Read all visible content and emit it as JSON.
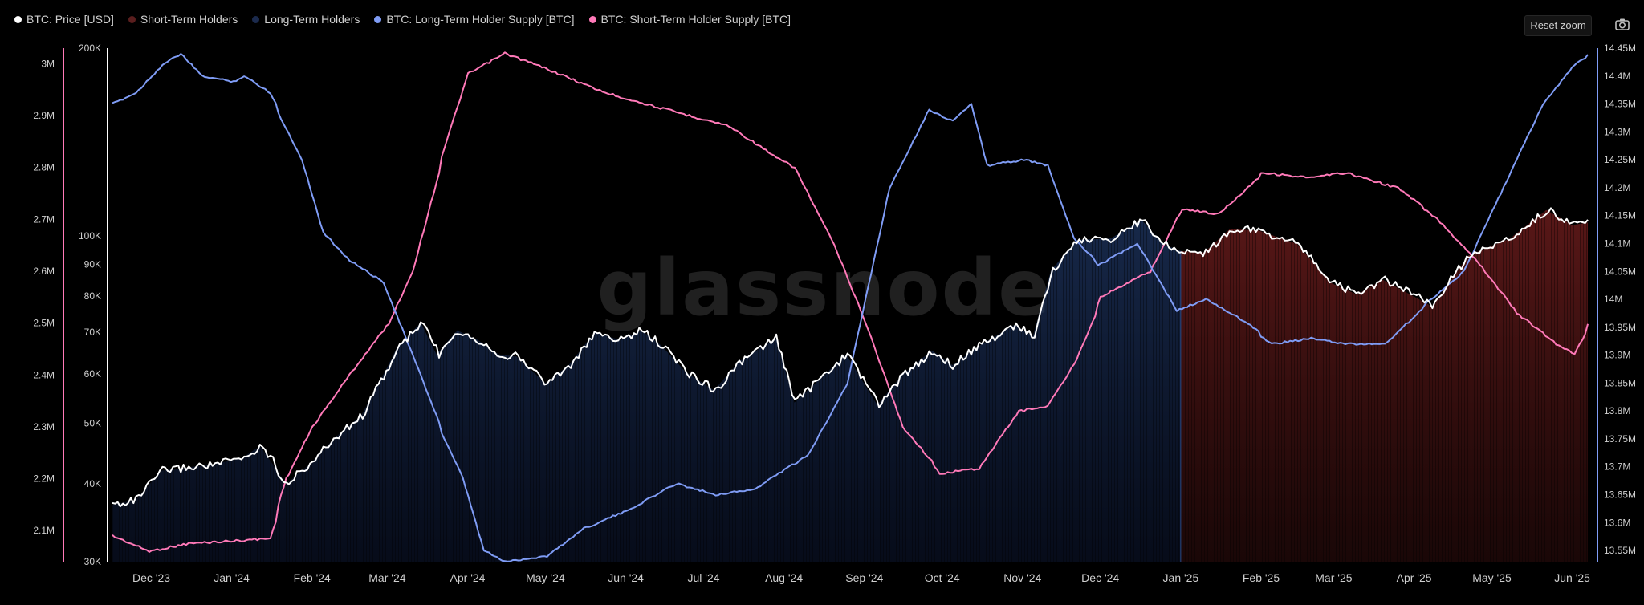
{
  "toolbar": {
    "reset_zoom_label": "Reset zoom",
    "camera_icon": "camera-icon"
  },
  "watermark": "glassnode",
  "colors": {
    "price": "#ffffff",
    "sth_area": "#a32b2b",
    "lth_area": "#2a4a86",
    "lth_supply": "#7f9cf5",
    "sth_supply": "#ff79b8"
  },
  "chart_data": {
    "type": "line",
    "title": "",
    "legend_placement": "top-left",
    "grid": false,
    "legend": [
      {
        "key": "price",
        "label": "BTC: Price [USD]"
      },
      {
        "key": "sth",
        "label": "Short-Term Holders"
      },
      {
        "key": "lth",
        "label": "Long-Term Holders"
      },
      {
        "key": "lth_supply",
        "label": "BTC: Long-Term Holder Supply [BTC]"
      },
      {
        "key": "sth_supply",
        "label": "BTC: Short-Term Holder Supply [BTC]"
      }
    ],
    "x_start": "2023-11-16",
    "x_end": "2025-06-07",
    "x_ticks": [
      {
        "date": "2023-12-01",
        "label": "Dec '23"
      },
      {
        "date": "2024-01-01",
        "label": "Jan '24"
      },
      {
        "date": "2024-02-01",
        "label": "Feb '24"
      },
      {
        "date": "2024-03-01",
        "label": "Mar '24"
      },
      {
        "date": "2024-04-01",
        "label": "Apr '24"
      },
      {
        "date": "2024-05-01",
        "label": "May '24"
      },
      {
        "date": "2024-06-01",
        "label": "Jun '24"
      },
      {
        "date": "2024-07-01",
        "label": "Jul '24"
      },
      {
        "date": "2024-08-01",
        "label": "Aug '24"
      },
      {
        "date": "2024-09-01",
        "label": "Sep '24"
      },
      {
        "date": "2024-10-01",
        "label": "Oct '24"
      },
      {
        "date": "2024-11-01",
        "label": "Nov '24"
      },
      {
        "date": "2024-12-01",
        "label": "Dec '24"
      },
      {
        "date": "2025-01-01",
        "label": "Jan '25"
      },
      {
        "date": "2025-02-01",
        "label": "Feb '25"
      },
      {
        "date": "2025-03-01",
        "label": "Mar '25"
      },
      {
        "date": "2025-04-01",
        "label": "Apr '25"
      },
      {
        "date": "2025-05-01",
        "label": "May '25"
      },
      {
        "date": "2025-06-01",
        "label": "Jun '25"
      }
    ],
    "axes": {
      "sth_supply": {
        "side": "far-left",
        "min": 2040000,
        "max": 3030000,
        "ticks": [
          "3M",
          "2.9M",
          "2.8M",
          "2.7M",
          "2.6M",
          "2.5M",
          "2.4M",
          "2.3M",
          "2.2M",
          "2.1M"
        ],
        "tick_values": [
          3000000,
          2900000,
          2800000,
          2700000,
          2600000,
          2500000,
          2400000,
          2300000,
          2200000,
          2100000
        ]
      },
      "price": {
        "side": "left",
        "scale": "log",
        "min": 30000,
        "max": 200000,
        "ticks": [
          "200K",
          "100K",
          "90K",
          "80K",
          "70K",
          "60K",
          "50K",
          "40K",
          "30K"
        ],
        "tick_values": [
          200000,
          100000,
          90000,
          80000,
          70000,
          60000,
          50000,
          40000,
          30000
        ]
      },
      "lth_supply": {
        "side": "right",
        "min": 13530000,
        "max": 14450000,
        "ticks": [
          "14.45M",
          "14.4M",
          "14.35M",
          "14.3M",
          "14.25M",
          "14.2M",
          "14.15M",
          "14.1M",
          "14.05M",
          "14M",
          "13.95M",
          "13.9M",
          "13.85M",
          "13.8M",
          "13.75M",
          "13.7M",
          "13.65M",
          "13.6M",
          "13.55M"
        ],
        "tick_values": [
          14450000,
          14400000,
          14350000,
          14300000,
          14250000,
          14200000,
          14150000,
          14100000,
          14050000,
          14000000,
          13950000,
          13900000,
          13850000,
          13800000,
          13750000,
          13700000,
          13650000,
          13600000,
          13550000
        ]
      }
    },
    "holder_regime": [
      {
        "name": "Long-Term Holders",
        "from": "2023-11-16",
        "to": "2025-01-01"
      },
      {
        "name": "Short-Term Holders",
        "from": "2025-01-01",
        "to": "2025-06-07"
      }
    ],
    "series": [
      {
        "key": "price",
        "name": "BTC: Price [USD]",
        "points": [
          [
            "2023-11-16",
            37000
          ],
          [
            "2023-11-25",
            37700
          ],
          [
            "2023-12-05",
            42000
          ],
          [
            "2023-12-15",
            42500
          ],
          [
            "2023-12-25",
            43000
          ],
          [
            "2024-01-05",
            44000
          ],
          [
            "2024-01-12",
            46000
          ],
          [
            "2024-01-22",
            40000
          ],
          [
            "2024-01-31",
            43000
          ],
          [
            "2024-02-10",
            47500
          ],
          [
            "2024-02-20",
            51500
          ],
          [
            "2024-03-01",
            61500
          ],
          [
            "2024-03-05",
            66500
          ],
          [
            "2024-03-14",
            72500
          ],
          [
            "2024-03-20",
            64500
          ],
          [
            "2024-03-28",
            70500
          ],
          [
            "2024-04-05",
            68000
          ],
          [
            "2024-04-13",
            64500
          ],
          [
            "2024-04-20",
            64000
          ],
          [
            "2024-05-01",
            58000
          ],
          [
            "2024-05-10",
            62000
          ],
          [
            "2024-05-20",
            70000
          ],
          [
            "2024-05-30",
            68000
          ],
          [
            "2024-06-07",
            70500
          ],
          [
            "2024-06-15",
            66500
          ],
          [
            "2024-06-24",
            60500
          ],
          [
            "2024-07-05",
            56500
          ],
          [
            "2024-07-15",
            63000
          ],
          [
            "2024-07-29",
            68500
          ],
          [
            "2024-08-05",
            54000
          ],
          [
            "2024-08-15",
            59000
          ],
          [
            "2024-08-25",
            64500
          ],
          [
            "2024-09-06",
            53500
          ],
          [
            "2024-09-15",
            59500
          ],
          [
            "2024-09-27",
            65500
          ],
          [
            "2024-10-05",
            62000
          ],
          [
            "2024-10-15",
            66500
          ],
          [
            "2024-10-29",
            72000
          ],
          [
            "2024-11-05",
            69000
          ],
          [
            "2024-11-12",
            88000
          ],
          [
            "2024-11-22",
            98500
          ],
          [
            "2024-12-05",
            99000
          ],
          [
            "2024-12-17",
            106000
          ],
          [
            "2024-12-25",
            97000
          ],
          [
            "2025-01-01",
            94500
          ],
          [
            "2025-01-10",
            94000
          ],
          [
            "2025-01-20",
            102500
          ],
          [
            "2025-01-31",
            102000
          ],
          [
            "2025-02-15",
            97000
          ],
          [
            "2025-02-28",
            84000
          ],
          [
            "2025-03-10",
            80500
          ],
          [
            "2025-03-20",
            85000
          ],
          [
            "2025-04-08",
            77000
          ],
          [
            "2025-04-22",
            93000
          ],
          [
            "2025-05-08",
            99000
          ],
          [
            "2025-05-22",
            110000
          ],
          [
            "2025-06-01",
            104000
          ],
          [
            "2025-06-07",
            105000
          ]
        ]
      },
      {
        "key": "lth_supply",
        "name": "BTC: Long-Term Holder Supply [BTC]",
        "points": [
          [
            "2023-11-16",
            14350000
          ],
          [
            "2023-11-25",
            14370000
          ],
          [
            "2023-12-05",
            14420000
          ],
          [
            "2023-12-12",
            14440000
          ],
          [
            "2023-12-20",
            14400000
          ],
          [
            "2024-01-01",
            14390000
          ],
          [
            "2024-01-05",
            14400000
          ],
          [
            "2024-01-15",
            14370000
          ],
          [
            "2024-01-28",
            14250000
          ],
          [
            "2024-02-05",
            14120000
          ],
          [
            "2024-02-15",
            14070000
          ],
          [
            "2024-02-28",
            14030000
          ],
          [
            "2024-03-10",
            13900000
          ],
          [
            "2024-03-20",
            13780000
          ],
          [
            "2024-03-30",
            13680000
          ],
          [
            "2024-04-07",
            13550000
          ],
          [
            "2024-04-15",
            13530000
          ],
          [
            "2024-05-01",
            13540000
          ],
          [
            "2024-05-15",
            13590000
          ],
          [
            "2024-06-01",
            13620000
          ],
          [
            "2024-06-20",
            13670000
          ],
          [
            "2024-07-05",
            13650000
          ],
          [
            "2024-07-20",
            13660000
          ],
          [
            "2024-08-10",
            13720000
          ],
          [
            "2024-08-25",
            13850000
          ],
          [
            "2024-09-10",
            14200000
          ],
          [
            "2024-09-25",
            14340000
          ],
          [
            "2024-10-05",
            14320000
          ],
          [
            "2024-10-12",
            14350000
          ],
          [
            "2024-10-18",
            14240000
          ],
          [
            "2024-11-01",
            14250000
          ],
          [
            "2024-11-10",
            14240000
          ],
          [
            "2024-11-20",
            14110000
          ],
          [
            "2024-11-30",
            14060000
          ],
          [
            "2024-12-15",
            14100000
          ],
          [
            "2024-12-30",
            13980000
          ],
          [
            "2025-01-10",
            14000000
          ],
          [
            "2025-01-25",
            13960000
          ],
          [
            "2025-02-05",
            13920000
          ],
          [
            "2025-02-20",
            13930000
          ],
          [
            "2025-03-05",
            13920000
          ],
          [
            "2025-03-20",
            13920000
          ],
          [
            "2025-04-05",
            13990000
          ],
          [
            "2025-04-20",
            14050000
          ],
          [
            "2025-05-05",
            14200000
          ],
          [
            "2025-05-20",
            14350000
          ],
          [
            "2025-06-01",
            14420000
          ],
          [
            "2025-06-07",
            14440000
          ]
        ]
      },
      {
        "key": "sth_supply",
        "name": "BTC: Short-Term Holder Supply [BTC]",
        "points": [
          [
            "2023-11-16",
            2090000
          ],
          [
            "2023-11-30",
            2060000
          ],
          [
            "2023-12-15",
            2075000
          ],
          [
            "2024-01-01",
            2080000
          ],
          [
            "2024-01-15",
            2085000
          ],
          [
            "2024-01-22",
            2200000
          ],
          [
            "2024-02-01",
            2300000
          ],
          [
            "2024-02-15",
            2400000
          ],
          [
            "2024-03-01",
            2500000
          ],
          [
            "2024-03-10",
            2600000
          ],
          [
            "2024-03-20",
            2790000
          ],
          [
            "2024-04-01",
            2980000
          ],
          [
            "2024-04-15",
            3020000
          ],
          [
            "2024-05-01",
            2990000
          ],
          [
            "2024-05-20",
            2950000
          ],
          [
            "2024-06-10",
            2920000
          ],
          [
            "2024-06-25",
            2900000
          ],
          [
            "2024-07-10",
            2880000
          ],
          [
            "2024-07-25",
            2830000
          ],
          [
            "2024-08-05",
            2800000
          ],
          [
            "2024-08-20",
            2650000
          ],
          [
            "2024-09-01",
            2500000
          ],
          [
            "2024-09-15",
            2300000
          ],
          [
            "2024-09-30",
            2210000
          ],
          [
            "2024-10-15",
            2220000
          ],
          [
            "2024-10-30",
            2330000
          ],
          [
            "2024-11-10",
            2340000
          ],
          [
            "2024-11-20",
            2420000
          ],
          [
            "2024-12-01",
            2550000
          ],
          [
            "2024-12-20",
            2600000
          ],
          [
            "2025-01-01",
            2720000
          ],
          [
            "2025-01-15",
            2710000
          ],
          [
            "2025-02-01",
            2790000
          ],
          [
            "2025-02-20",
            2780000
          ],
          [
            "2025-03-05",
            2790000
          ],
          [
            "2025-03-25",
            2760000
          ],
          [
            "2025-04-10",
            2700000
          ],
          [
            "2025-04-25",
            2620000
          ],
          [
            "2025-05-10",
            2520000
          ],
          [
            "2025-05-25",
            2460000
          ],
          [
            "2025-06-01",
            2440000
          ],
          [
            "2025-06-07",
            2500000
          ]
        ]
      }
    ]
  }
}
